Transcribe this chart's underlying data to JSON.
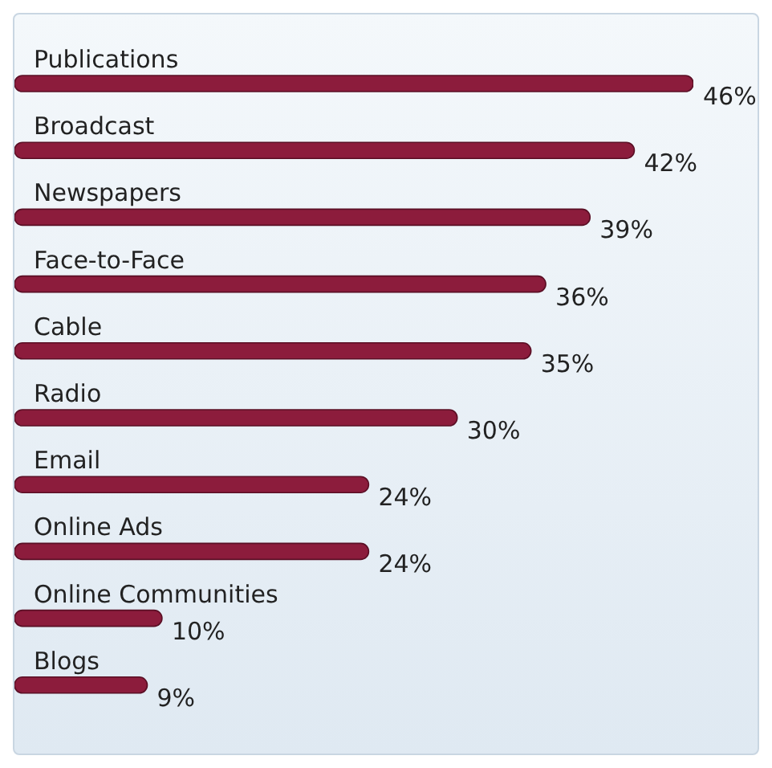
{
  "chart_data": {
    "type": "bar",
    "orientation": "horizontal",
    "categories": [
      "Publications",
      "Broadcast",
      "Newspapers",
      "Face-to-Face",
      "Cable",
      "Radio",
      "Email",
      "Online Ads",
      "Online Communities",
      "Blogs"
    ],
    "values": [
      46,
      42,
      39,
      36,
      35,
      30,
      24,
      24,
      10,
      9
    ],
    "value_labels": [
      "46%",
      "42%",
      "39%",
      "36%",
      "35%",
      "30%",
      "24%",
      "24%",
      "10%",
      "9%"
    ],
    "color": "#8c1c3c"
  }
}
